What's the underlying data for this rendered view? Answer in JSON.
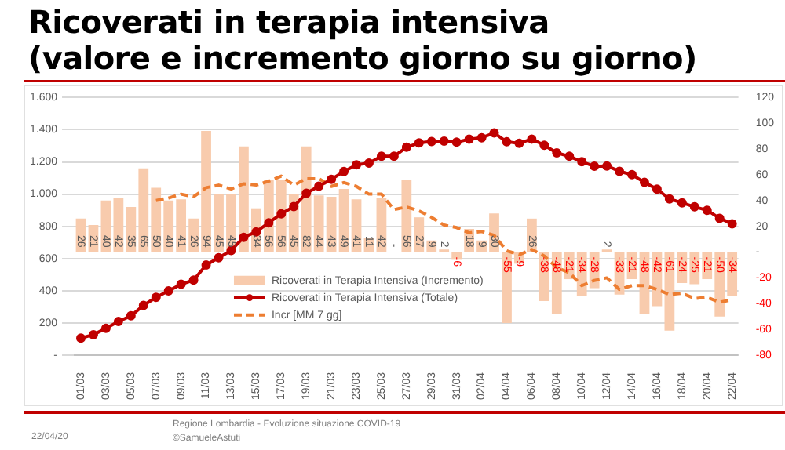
{
  "chart_data": {
    "type": "bar",
    "title": "Ricoverati in terapia intensiva\n(valore e incremento giorno su giorno)",
    "categories": [
      "01/03",
      null,
      "03/03",
      null,
      "05/03",
      null,
      "07/03",
      null,
      "09/03",
      null,
      "11/03",
      null,
      "13/03",
      null,
      "15/03",
      null,
      "17/03",
      null,
      "19/03",
      null,
      "21/03",
      null,
      "23/03",
      null,
      "25/03",
      null,
      "27/03",
      null,
      "29/03",
      null,
      "31/03",
      null,
      "02/04",
      null,
      "04/04",
      null,
      "06/04",
      null,
      "08/04",
      null,
      "10/04",
      null,
      "12/04",
      null,
      "14/04",
      null,
      "16/04",
      null,
      "18/04",
      null,
      "20/04",
      null,
      "22/04"
    ],
    "series": [
      {
        "name": "Ricoverati in Terapia Intensiva (Incremento)",
        "axis": "y2",
        "color": "#f8cbad",
        "values": [
          26,
          21,
          40,
          42,
          35,
          65,
          50,
          40,
          41,
          26,
          94,
          45,
          45,
          82,
          34,
          56,
          56,
          45,
          82,
          44,
          43,
          49,
          41,
          11,
          42,
          0,
          56,
          27,
          9,
          2,
          -6,
          18,
          9,
          30,
          -55,
          -9,
          26,
          -38,
          -48,
          -21,
          -34,
          -28,
          2,
          -33,
          -21,
          -48,
          -42,
          -61,
          -24,
          -25,
          -21,
          -50,
          -34
        ],
        "value_labels": [
          "26",
          "21",
          "40",
          "42",
          "35",
          "65",
          "50",
          "40",
          "41",
          "26",
          "94",
          "45",
          "45",
          null,
          "34",
          "56",
          "56",
          "45",
          "82",
          "44",
          "43",
          "49",
          "41",
          "11",
          "42",
          "-",
          "56",
          "27",
          "9",
          "2",
          "-6",
          "18",
          "9",
          "30",
          "-55",
          "-9",
          "26",
          "-38",
          "-48",
          "-21",
          "-34",
          "-28",
          "2",
          "-33",
          "-21",
          "-48",
          "-42",
          "-61",
          "-24",
          "-25",
          "-21",
          "-50",
          "-34"
        ]
      },
      {
        "name": "Ricoverati in Terapia Intensiva (Totale)",
        "type": "line",
        "color": "#c00000",
        "marker": "circle",
        "line_style": "solid",
        "values": [
          106,
          127,
          167,
          209,
          244,
          309,
          359,
          399,
          440,
          466,
          560,
          605,
          650,
          732,
          766,
          822,
          878,
          923,
          1005,
          1049,
          1092,
          1141,
          1182,
          1193,
          1235,
          1235,
          1291,
          1318,
          1327,
          1329,
          1323,
          1341,
          1350,
          1380,
          1325,
          1316,
          1342,
          1304,
          1256,
          1235,
          1201,
          1173,
          1175,
          1142,
          1121,
          1073,
          1031,
          970,
          946,
          921,
          900,
          850,
          816
        ]
      },
      {
        "name": "Incr [MM 7 gg]",
        "type": "line",
        "axis": "y2",
        "color": "#ed7d31",
        "marker": "none",
        "line_style": "dashed",
        "values": [
          null,
          null,
          null,
          null,
          null,
          null,
          40,
          42,
          45,
          43,
          50,
          52,
          49,
          53,
          52,
          55,
          59,
          52,
          57,
          57,
          51,
          54,
          51,
          45,
          45,
          33,
          35,
          32,
          27,
          21,
          19,
          15,
          16,
          13,
          1,
          -2,
          2,
          -3,
          -12,
          -16,
          -26,
          -22,
          -20,
          -29,
          -26,
          -26,
          -29,
          -33,
          -32,
          -36,
          -35,
          -39,
          -37
        ]
      }
    ],
    "ylim": [
      0,
      1600
    ],
    "yticks": [
      {
        "value": 0,
        "label": "-"
      },
      {
        "value": 200,
        "label": "200"
      },
      {
        "value": 400,
        "label": "400"
      },
      {
        "value": 600,
        "label": "600"
      },
      {
        "value": 800,
        "label": "800"
      },
      {
        "value": 1000,
        "label": "1.000"
      },
      {
        "value": 1200,
        "label": "1.200"
      },
      {
        "value": 1400,
        "label": "1.400"
      },
      {
        "value": 1600,
        "label": "1.600"
      }
    ],
    "y2lim": [
      -80,
      120
    ],
    "y2ticks": [
      -80,
      -60,
      -40,
      -20,
      {
        "value": 0,
        "label": "-"
      },
      20,
      40,
      60,
      80,
      100,
      120
    ],
    "grid": "y",
    "legend": "bottom left",
    "annotations": [
      "22/04/20",
      "Regione Lombardia - Evoluzione situazione COVID-19",
      "©SamueleAstuti"
    ]
  }
}
